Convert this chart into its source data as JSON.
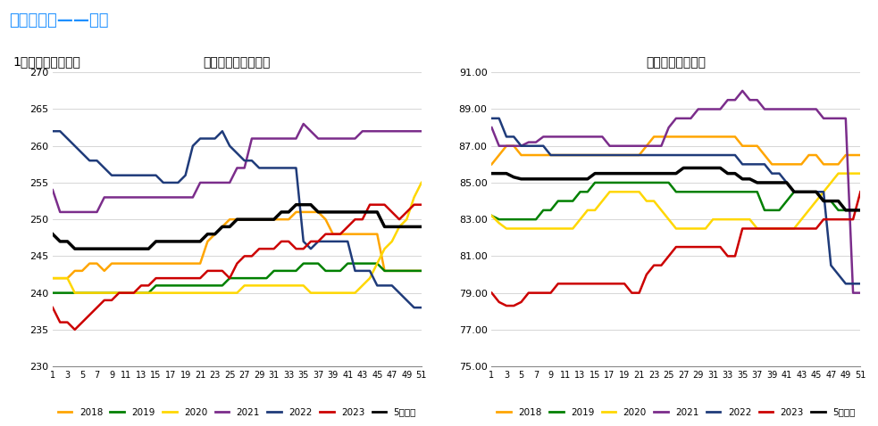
{
  "title1": "玻璃：产线开工条数",
  "title2": "浮法玻璃：开工率",
  "header_title": "基本面分析——供给",
  "sub_header": "1、玻璃产线、产量",
  "x_ticks": [
    1,
    3,
    5,
    7,
    9,
    11,
    13,
    15,
    17,
    19,
    21,
    23,
    25,
    27,
    29,
    31,
    33,
    35,
    37,
    39,
    41,
    43,
    45,
    47,
    49,
    51
  ],
  "legend_labels": [
    "2018",
    "2019",
    "2020",
    "2021",
    "2022",
    "2023",
    "5年均值"
  ],
  "colors": [
    "#FFA500",
    "#008000",
    "#FFD700",
    "#7B2D8B",
    "#1F3B7A",
    "#CC0000",
    "#000000"
  ],
  "left_ylim": [
    230,
    270
  ],
  "left_yticks": [
    230,
    235,
    240,
    245,
    250,
    255,
    260,
    265,
    270
  ],
  "right_ylim": [
    75.0,
    91.0
  ],
  "right_yticks": [
    75.0,
    77.0,
    79.0,
    81.0,
    83.0,
    85.0,
    87.0,
    89.0,
    91.0
  ],
  "left_series": {
    "2018": [
      242,
      242,
      242,
      243,
      243,
      244,
      244,
      243,
      244,
      244,
      244,
      244,
      244,
      244,
      244,
      244,
      244,
      244,
      244,
      244,
      244,
      247,
      248,
      249,
      250,
      250,
      250,
      250,
      250,
      250,
      250,
      250,
      250,
      251,
      251,
      251,
      251,
      250,
      248,
      248,
      248,
      248,
      248,
      248,
      248,
      243,
      243,
      243,
      243,
      243,
      243
    ],
    "2019": [
      240,
      240,
      240,
      240,
      240,
      240,
      240,
      240,
      240,
      240,
      240,
      240,
      240,
      240,
      241,
      241,
      241,
      241,
      241,
      241,
      241,
      241,
      241,
      241,
      242,
      242,
      242,
      242,
      242,
      242,
      243,
      243,
      243,
      243,
      244,
      244,
      244,
      243,
      243,
      243,
      244,
      244,
      244,
      244,
      244,
      243,
      243,
      243,
      243,
      243,
      243
    ],
    "2020": [
      242,
      242,
      242,
      240,
      240,
      240,
      240,
      240,
      240,
      240,
      240,
      240,
      240,
      240,
      240,
      240,
      240,
      240,
      240,
      240,
      240,
      240,
      240,
      240,
      240,
      240,
      241,
      241,
      241,
      241,
      241,
      241,
      241,
      241,
      241,
      240,
      240,
      240,
      240,
      240,
      240,
      240,
      241,
      242,
      244,
      246,
      247,
      249,
      250,
      253,
      255
    ],
    "2021": [
      254,
      251,
      251,
      251,
      251,
      251,
      251,
      253,
      253,
      253,
      253,
      253,
      253,
      253,
      253,
      253,
      253,
      253,
      253,
      253,
      255,
      255,
      255,
      255,
      255,
      257,
      257,
      261,
      261,
      261,
      261,
      261,
      261,
      261,
      263,
      262,
      261,
      261,
      261,
      261,
      261,
      261,
      262,
      262,
      262,
      262,
      262,
      262,
      262,
      262,
      262
    ],
    "2022": [
      262,
      262,
      261,
      260,
      259,
      258,
      258,
      257,
      256,
      256,
      256,
      256,
      256,
      256,
      256,
      255,
      255,
      255,
      256,
      260,
      261,
      261,
      261,
      262,
      260,
      259,
      258,
      258,
      257,
      257,
      257,
      257,
      257,
      257,
      247,
      246,
      247,
      247,
      247,
      247,
      247,
      243,
      243,
      243,
      241,
      241,
      241,
      240,
      239,
      238,
      238
    ],
    "2023": [
      238,
      236,
      236,
      235,
      236,
      237,
      238,
      239,
      239,
      240,
      240,
      240,
      241,
      241,
      242,
      242,
      242,
      242,
      242,
      242,
      242,
      243,
      243,
      243,
      242,
      244,
      245,
      245,
      246,
      246,
      246,
      247,
      247,
      246,
      246,
      247,
      247,
      248,
      248,
      248,
      249,
      250,
      250,
      252,
      252,
      252,
      251,
      250,
      251,
      252,
      252
    ],
    "5year": [
      248,
      247,
      247,
      246,
      246,
      246,
      246,
      246,
      246,
      246,
      246,
      246,
      246,
      246,
      247,
      247,
      247,
      247,
      247,
      247,
      247,
      248,
      248,
      249,
      249,
      250,
      250,
      250,
      250,
      250,
      250,
      251,
      251,
      252,
      252,
      252,
      251,
      251,
      251,
      251,
      251,
      251,
      251,
      251,
      251,
      249,
      249,
      249,
      249,
      249,
      249
    ]
  },
  "right_series": {
    "2018": [
      86.0,
      86.5,
      87.0,
      87.0,
      86.5,
      86.5,
      86.5,
      86.5,
      86.5,
      86.5,
      86.5,
      86.5,
      86.5,
      86.5,
      86.5,
      86.5,
      86.5,
      86.5,
      86.5,
      86.5,
      86.5,
      87.0,
      87.5,
      87.5,
      87.5,
      87.5,
      87.5,
      87.5,
      87.5,
      87.5,
      87.5,
      87.5,
      87.5,
      87.5,
      87.0,
      87.0,
      87.0,
      86.5,
      86.0,
      86.0,
      86.0,
      86.0,
      86.0,
      86.5,
      86.5,
      86.0,
      86.0,
      86.0,
      86.5,
      86.5,
      86.5
    ],
    "2019": [
      83.2,
      83.0,
      83.0,
      83.0,
      83.0,
      83.0,
      83.0,
      83.5,
      83.5,
      84.0,
      84.0,
      84.0,
      84.5,
      84.5,
      85.0,
      85.0,
      85.0,
      85.0,
      85.0,
      85.0,
      85.0,
      85.0,
      85.0,
      85.0,
      85.0,
      84.5,
      84.5,
      84.5,
      84.5,
      84.5,
      84.5,
      84.5,
      84.5,
      84.5,
      84.5,
      84.5,
      84.5,
      83.5,
      83.5,
      83.5,
      84.0,
      84.5,
      84.5,
      84.5,
      84.5,
      84.0,
      84.0,
      83.5,
      83.5,
      83.5,
      83.5
    ],
    "2020": [
      83.2,
      82.8,
      82.5,
      82.5,
      82.5,
      82.5,
      82.5,
      82.5,
      82.5,
      82.5,
      82.5,
      82.5,
      83.0,
      83.5,
      83.5,
      84.0,
      84.5,
      84.5,
      84.5,
      84.5,
      84.5,
      84.0,
      84.0,
      83.5,
      83.0,
      82.5,
      82.5,
      82.5,
      82.5,
      82.5,
      83.0,
      83.0,
      83.0,
      83.0,
      83.0,
      83.0,
      82.5,
      82.5,
      82.5,
      82.5,
      82.5,
      82.5,
      83.0,
      83.5,
      84.0,
      84.5,
      85.0,
      85.5,
      85.5,
      85.5,
      85.5
    ],
    "2021": [
      88.0,
      87.0,
      87.0,
      87.0,
      87.0,
      87.2,
      87.2,
      87.5,
      87.5,
      87.5,
      87.5,
      87.5,
      87.5,
      87.5,
      87.5,
      87.5,
      87.0,
      87.0,
      87.0,
      87.0,
      87.0,
      87.0,
      87.0,
      87.0,
      88.0,
      88.5,
      88.5,
      88.5,
      89.0,
      89.0,
      89.0,
      89.0,
      89.5,
      89.5,
      90.0,
      89.5,
      89.5,
      89.0,
      89.0,
      89.0,
      89.0,
      89.0,
      89.0,
      89.0,
      89.0,
      88.5,
      88.5,
      88.5,
      88.5,
      79.0,
      79.0
    ],
    "2022": [
      88.5,
      88.5,
      87.5,
      87.5,
      87.0,
      87.0,
      87.0,
      87.0,
      86.5,
      86.5,
      86.5,
      86.5,
      86.5,
      86.5,
      86.5,
      86.5,
      86.5,
      86.5,
      86.5,
      86.5,
      86.5,
      86.5,
      86.5,
      86.5,
      86.5,
      86.5,
      86.5,
      86.5,
      86.5,
      86.5,
      86.5,
      86.5,
      86.5,
      86.5,
      86.0,
      86.0,
      86.0,
      86.0,
      85.5,
      85.5,
      85.0,
      84.5,
      84.5,
      84.5,
      84.5,
      84.5,
      80.5,
      80.0,
      79.5,
      79.5,
      79.5
    ],
    "2023": [
      79.0,
      78.5,
      78.3,
      78.3,
      78.5,
      79.0,
      79.0,
      79.0,
      79.0,
      79.5,
      79.5,
      79.5,
      79.5,
      79.5,
      79.5,
      79.5,
      79.5,
      79.5,
      79.5,
      79.0,
      79.0,
      80.0,
      80.5,
      80.5,
      81.0,
      81.5,
      81.5,
      81.5,
      81.5,
      81.5,
      81.5,
      81.5,
      81.0,
      81.0,
      82.5,
      82.5,
      82.5,
      82.5,
      82.5,
      82.5,
      82.5,
      82.5,
      82.5,
      82.5,
      82.5,
      83.0,
      83.0,
      83.0,
      83.0,
      83.0,
      84.5
    ],
    "5year": [
      85.5,
      85.5,
      85.5,
      85.3,
      85.2,
      85.2,
      85.2,
      85.2,
      85.2,
      85.2,
      85.2,
      85.2,
      85.2,
      85.2,
      85.5,
      85.5,
      85.5,
      85.5,
      85.5,
      85.5,
      85.5,
      85.5,
      85.5,
      85.5,
      85.5,
      85.5,
      85.8,
      85.8,
      85.8,
      85.8,
      85.8,
      85.8,
      85.5,
      85.5,
      85.2,
      85.2,
      85.0,
      85.0,
      85.0,
      85.0,
      85.0,
      84.5,
      84.5,
      84.5,
      84.5,
      84.0,
      84.0,
      84.0,
      83.5,
      83.5,
      83.5
    ]
  }
}
